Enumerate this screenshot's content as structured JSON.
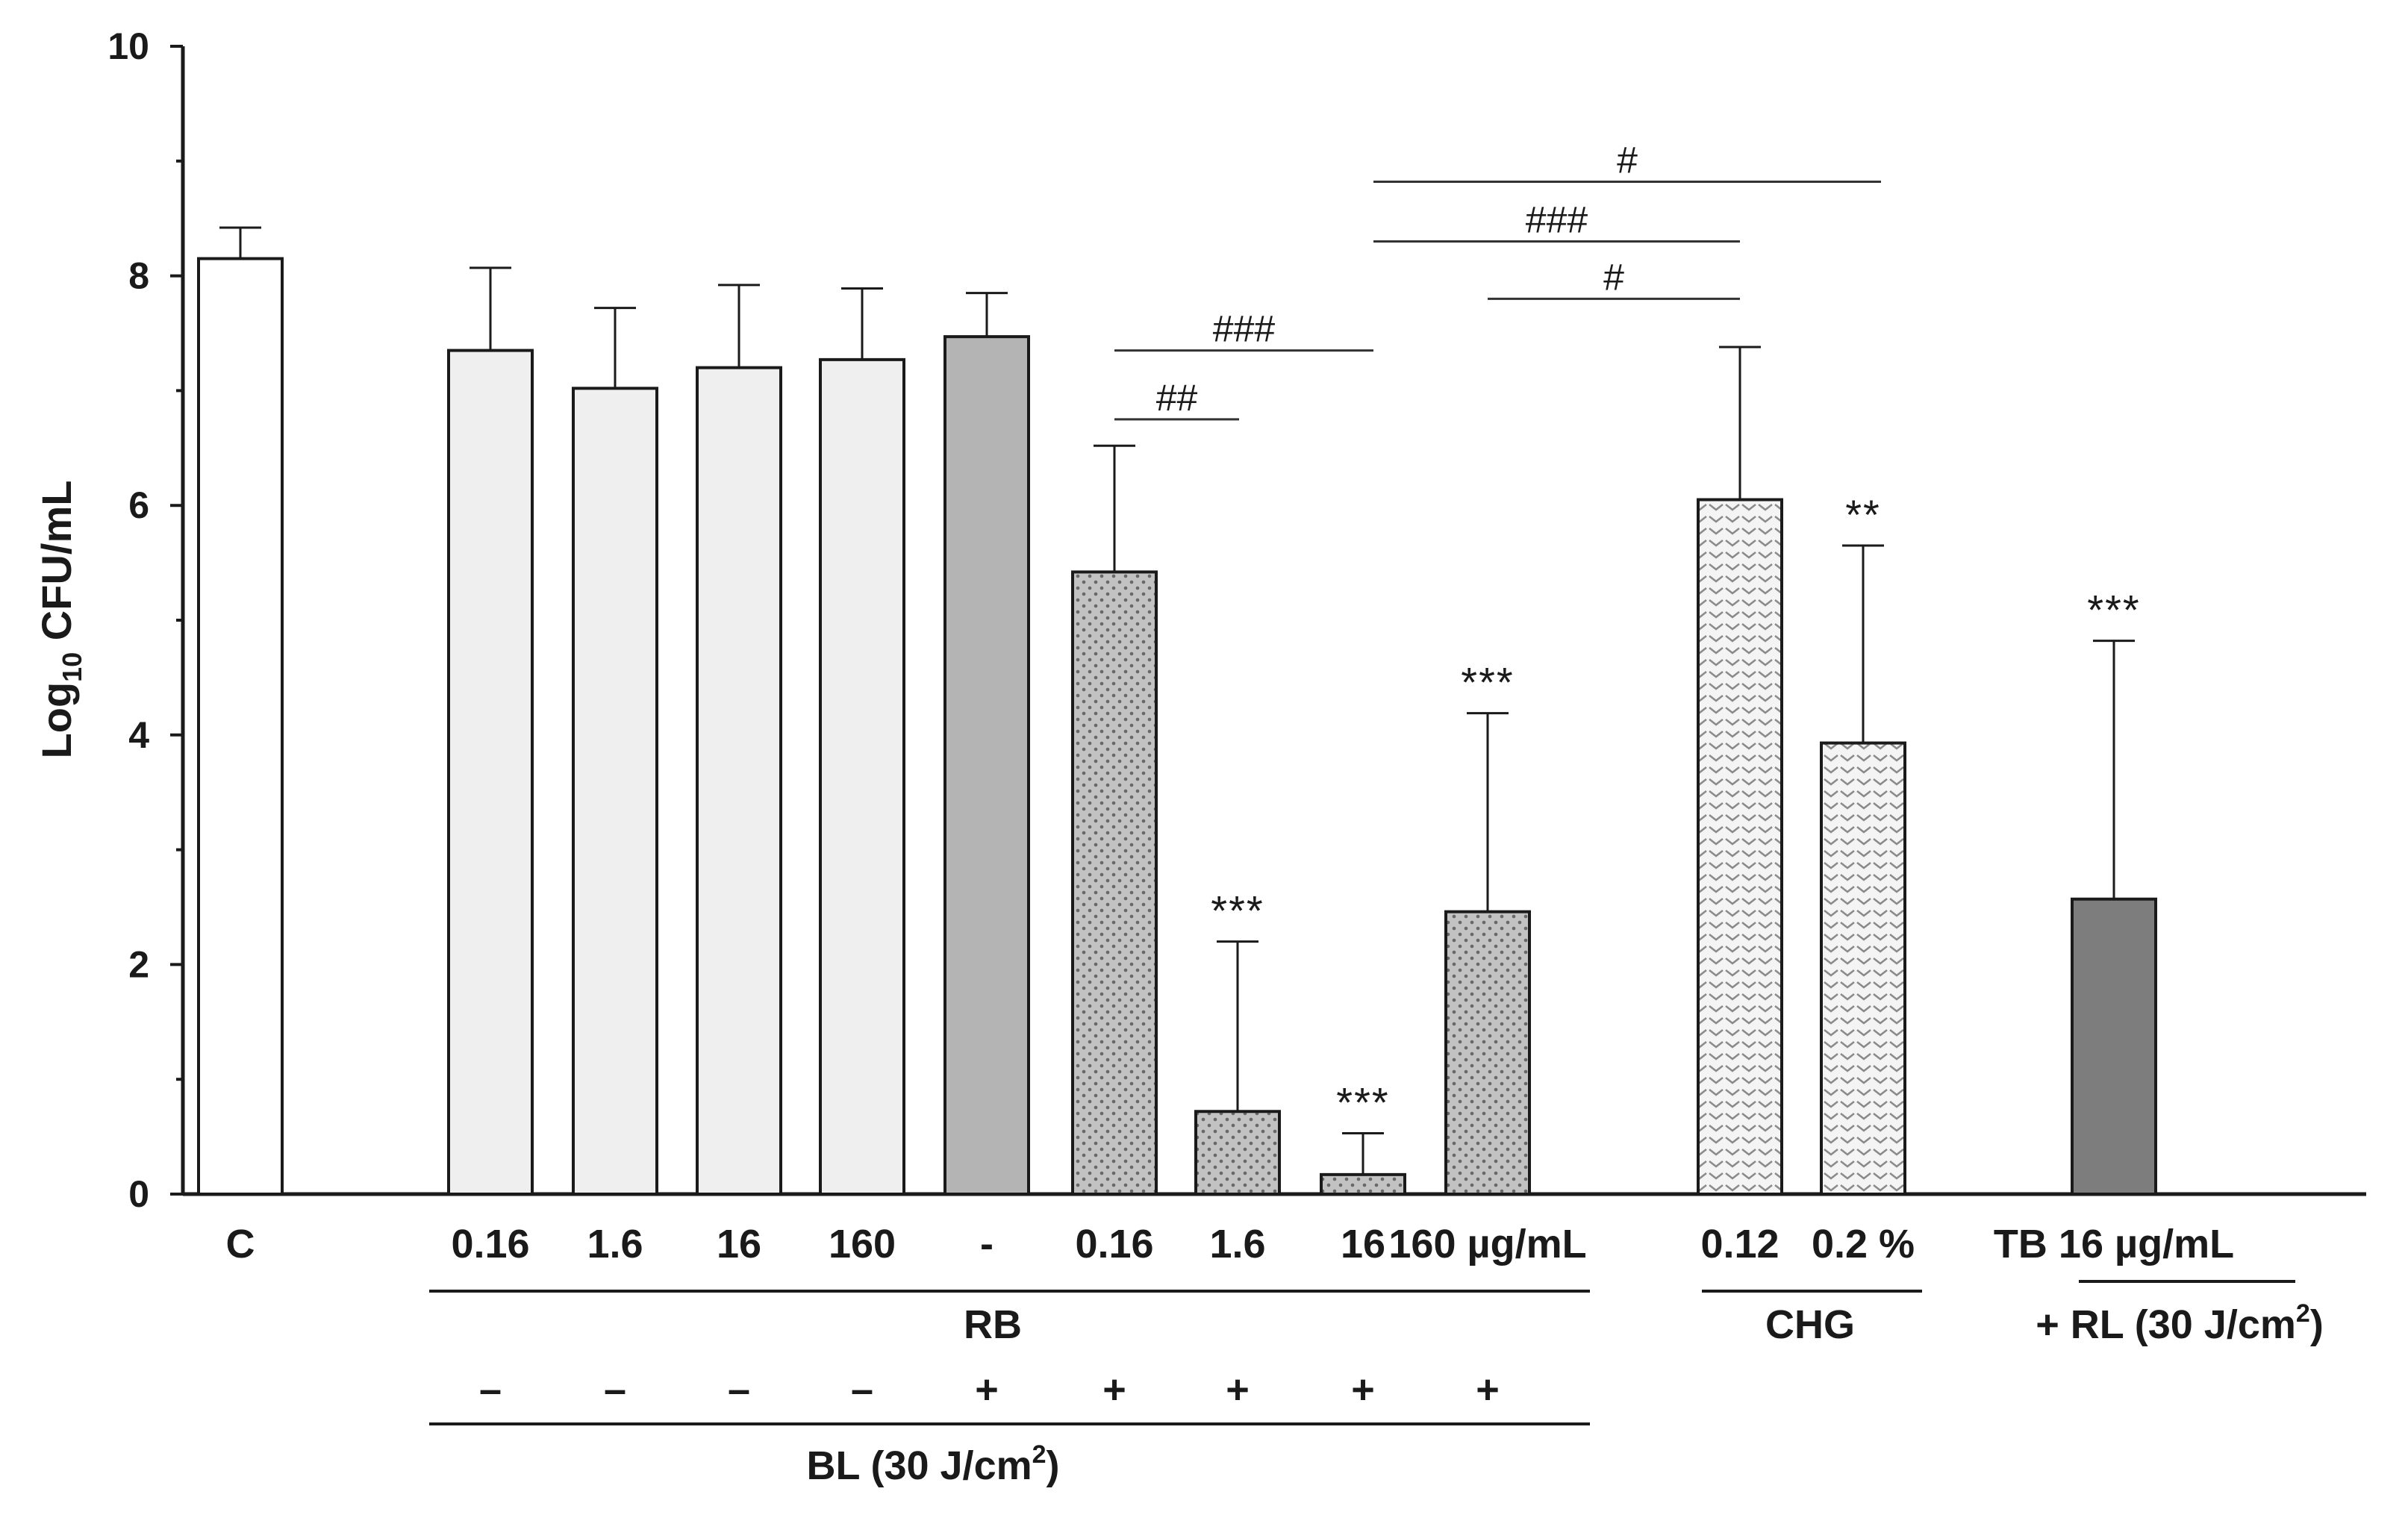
{
  "chart_data": {
    "type": "bar",
    "ylabel_prefix": "Log",
    "ylabel_sub": "10",
    "ylabel_suffix": " CFU/mL",
    "ylim": [
      0,
      10
    ],
    "yticks": [
      "0",
      "2",
      "4",
      "6",
      "8",
      "10"
    ],
    "bars": [
      {
        "label": "C",
        "value": 8.15,
        "err": 0.27,
        "fill": "white",
        "stars": ""
      },
      {
        "label": "0.16",
        "value": 7.35,
        "err": 0.72,
        "fill": "light",
        "stars": ""
      },
      {
        "label": "1.6",
        "value": 7.02,
        "err": 0.7,
        "fill": "light",
        "stars": ""
      },
      {
        "label": "16",
        "value": 7.2,
        "err": 0.72,
        "fill": "light",
        "stars": ""
      },
      {
        "label": "160",
        "value": 7.27,
        "err": 0.62,
        "fill": "light",
        "stars": ""
      },
      {
        "label": "-",
        "value": 7.47,
        "err": 0.38,
        "fill": "medium",
        "stars": ""
      },
      {
        "label": "0.16",
        "value": 5.42,
        "err": 1.1,
        "fill": "dotted",
        "stars": ""
      },
      {
        "label": "1.6",
        "value": 0.72,
        "err": 1.48,
        "fill": "dotted",
        "stars": "***"
      },
      {
        "label": "16",
        "value": 0.17,
        "err": 0.36,
        "fill": "dotted",
        "stars": "***"
      },
      {
        "label": "160 µg/mL",
        "value": 2.46,
        "err": 1.73,
        "fill": "dotted",
        "stars": "***"
      },
      {
        "label": "0.12",
        "value": 6.05,
        "err": 1.33,
        "fill": "chevron",
        "stars": ""
      },
      {
        "label": "0.2 %",
        "value": 3.93,
        "err": 1.72,
        "fill": "chevron",
        "stars": "**"
      },
      {
        "label": "TB 16 µg/mL",
        "value": 2.57,
        "err": 2.25,
        "fill": "dark",
        "stars": "***"
      }
    ],
    "groups": {
      "rb": "RB",
      "chg": "CHG",
      "bl_prefix": "BL (30 J/cm",
      "bl_sup": "2",
      "bl_suffix": ")",
      "tb_line2_prefix": "+ RL (30 J/cm",
      "tb_line2_sup": "2",
      "tb_line2_suffix": ")"
    },
    "bl_signs": [
      "–",
      "–",
      "–",
      "–",
      "+",
      "+",
      "+",
      "+",
      "+"
    ],
    "comparisons": [
      {
        "from_bar": 6,
        "to_bar": 7,
        "label": "##",
        "y": 6.75
      },
      {
        "from_bar": 6,
        "to_bar": 8,
        "label": "###",
        "y": 7.35
      },
      {
        "from_bar": 9,
        "to_bar": 10,
        "label": "#",
        "y": 7.8
      },
      {
        "from_bar": 8,
        "to_bar": 10,
        "label": "###",
        "y": 8.3
      },
      {
        "from_bar": 8,
        "to_bar": 11,
        "label": "#",
        "y": 8.82
      }
    ]
  }
}
